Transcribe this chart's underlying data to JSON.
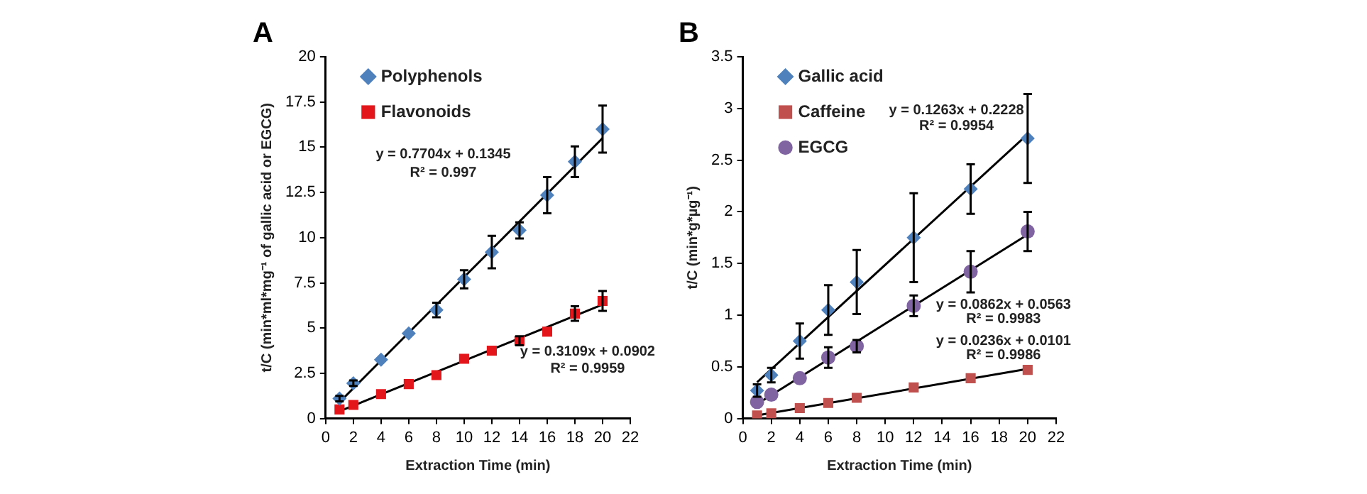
{
  "chart_data": [
    {
      "type": "scatter",
      "title": "A",
      "xlabel": "Extraction Time (min)",
      "ylabel": "t/C (min*ml*mg⁻¹ of gallic acid or EGCG)",
      "xlim": [
        0,
        22
      ],
      "xticks": [
        0,
        2,
        4,
        6,
        8,
        10,
        12,
        14,
        16,
        18,
        20,
        22
      ],
      "ylim": [
        0,
        20
      ],
      "yticks": [
        0,
        2.5,
        5,
        7.5,
        10,
        12.5,
        15,
        17.5,
        20
      ],
      "grid": false,
      "legend": "top left",
      "series": [
        {
          "name": "Polyphenols",
          "marker": "diamond",
          "color": "#4f81bd",
          "x": [
            1,
            2,
            4,
            6,
            8,
            10,
            12,
            14,
            16,
            18,
            20
          ],
          "values": [
            1.1,
            1.95,
            3.25,
            4.7,
            6.0,
            7.7,
            9.2,
            10.4,
            12.35,
            14.2,
            16.0
          ],
          "errors": [
            0.15,
            0.15,
            null,
            null,
            0.4,
            0.5,
            0.9,
            0.45,
            1.0,
            0.85,
            1.3
          ]
        },
        {
          "name": "Flavonoids",
          "marker": "square",
          "color": "#e3161c",
          "x": [
            1,
            2,
            4,
            6,
            8,
            10,
            12,
            14,
            16,
            18,
            20
          ],
          "values": [
            0.5,
            0.75,
            1.35,
            1.9,
            2.4,
            3.3,
            3.75,
            4.3,
            4.8,
            5.8,
            6.5
          ],
          "errors": [
            null,
            null,
            null,
            null,
            null,
            null,
            null,
            0.25,
            null,
            0.4,
            0.55
          ]
        },
        {
          "type": "line",
          "marker": "none",
          "color": "#000000",
          "x": [
            1,
            20
          ],
          "values": [
            0.9,
            15.5
          ]
        },
        {
          "type": "line",
          "marker": "none",
          "color": "#000000",
          "x": [
            1,
            20
          ],
          "values": [
            0.4,
            6.3
          ]
        }
      ],
      "annotations": [
        "y = 0.7704x + 0.1345",
        "R² = 0.997",
        "y = 0.3109x + 0.0902",
        "R² = 0.9959"
      ]
    },
    {
      "type": "scatter",
      "title": "B",
      "xlabel": "Extraction Time (min)",
      "ylabel": "t/C (min*g*µg⁻¹)",
      "xlim": [
        0,
        22
      ],
      "xticks": [
        0,
        2,
        4,
        6,
        8,
        10,
        12,
        14,
        16,
        18,
        20,
        22
      ],
      "ylim": [
        0,
        3.5
      ],
      "yticks": [
        0,
        0.5,
        1,
        1.5,
        2,
        2.5,
        3,
        3.5
      ],
      "grid": false,
      "legend": "top left",
      "series": [
        {
          "name": "Gallic acid",
          "marker": "diamond",
          "color": "#4f81bd",
          "x": [
            1,
            2,
            4,
            6,
            8,
            12,
            16,
            20
          ],
          "values": [
            0.27,
            0.42,
            0.75,
            1.05,
            1.32,
            1.75,
            2.22,
            2.71
          ],
          "errors": [
            0.06,
            0.07,
            0.17,
            0.24,
            0.31,
            0.43,
            0.24,
            0.43
          ]
        },
        {
          "name": "Caffeine",
          "marker": "square",
          "color": "#c0504d",
          "x": [
            1,
            2,
            4,
            6,
            8,
            12,
            16,
            20
          ],
          "values": [
            0.03,
            0.05,
            0.1,
            0.15,
            0.2,
            0.3,
            0.39,
            0.47
          ]
        },
        {
          "name": "EGCG",
          "marker": "circle",
          "color": "#8064a2",
          "x": [
            1,
            2,
            4,
            6,
            8,
            12,
            16,
            20
          ],
          "values": [
            0.16,
            0.23,
            0.39,
            0.59,
            0.7,
            1.09,
            1.42,
            1.81
          ],
          "errors": [
            null,
            null,
            null,
            0.1,
            0.06,
            0.1,
            0.2,
            0.19
          ]
        },
        {
          "type": "line",
          "marker": "none",
          "color": "#000000",
          "x": [
            1,
            20
          ],
          "values": [
            0.35,
            2.75
          ]
        },
        {
          "type": "line",
          "marker": "none",
          "color": "#000000",
          "x": [
            1,
            20
          ],
          "values": [
            0.14,
            1.78
          ]
        },
        {
          "type": "line",
          "marker": "none",
          "color": "#000000",
          "x": [
            1,
            20
          ],
          "values": [
            0.03,
            0.48
          ]
        }
      ],
      "annotations": [
        "y = 0.1263x + 0.2228",
        "R² = 0.9954",
        "y = 0.0862x + 0.0563",
        "R² = 0.9983",
        "y = 0.0236x + 0.0101",
        "R² = 0.9986"
      ]
    }
  ]
}
